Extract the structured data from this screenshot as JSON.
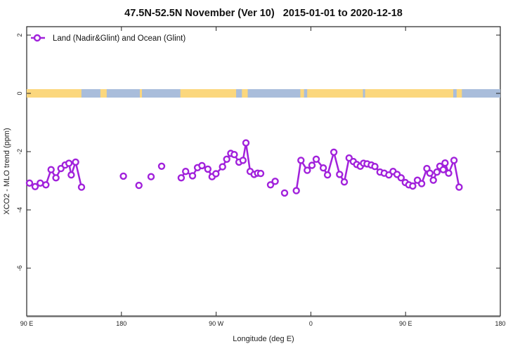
{
  "chart_data": {
    "type": "line",
    "title": "47.5N-52.5N November (Ver 10)   2015-01-01 to 2020-12-18",
    "legend": "Land (Nadir&Glint) and Ocean (Glint)",
    "xlabel": "Longitude (deg E)",
    "ylabel": "XCO2 - MLO trend (ppm)",
    "series_color": "#A121DB",
    "axis_color": "#222222",
    "xlim_deg": [
      90,
      540
    ],
    "ylim": [
      -7.64,
      2.29
    ],
    "grid": false,
    "legend_position": "top-left-inside",
    "x_ticks": [
      {
        "deg": 90,
        "label": "90 E"
      },
      {
        "deg": 180,
        "label": "180"
      },
      {
        "deg": 270,
        "label": "90 W"
      },
      {
        "deg": 360,
        "label": "0"
      },
      {
        "deg": 450,
        "label": "90 E"
      },
      {
        "deg": 540,
        "label": "180"
      }
    ],
    "y_ticks": [
      {
        "value": 2,
        "label": "2"
      },
      {
        "value": 0,
        "label": "0"
      },
      {
        "value": -2,
        "label": "-2"
      },
      {
        "value": -4,
        "label": "-4"
      },
      {
        "value": -6,
        "label": "-6"
      }
    ],
    "map_band": {
      "description": "world land/ocean strip for 47.5N-52.5N drawn along y=0",
      "land_color": "#FBD77D",
      "ocean_color": "#A9BDDB",
      "band_center_value": 0,
      "land_segments_deg": [
        [
          90,
          142
        ],
        [
          160,
          166
        ],
        [
          197.5,
          199.5
        ],
        [
          236,
          289
        ],
        [
          294.5,
          300
        ],
        [
          350,
          353.5
        ],
        [
          356.5,
          409.5
        ],
        [
          411.5,
          495.3
        ],
        [
          498.5,
          503.5
        ]
      ]
    },
    "series": [
      {
        "name": "Land (Nadir&Glint) and Ocean (Glint)",
        "marker": "open-circle",
        "segments": [
          [
            [
              92.7,
              -3.08
            ],
            [
              98.0,
              -3.2
            ],
            [
              102.9,
              -3.08
            ],
            [
              108.2,
              -3.14
            ],
            [
              113.2,
              -2.62
            ],
            [
              117.8,
              -2.9
            ],
            [
              122.5,
              -2.58
            ],
            [
              126.5,
              -2.46
            ],
            [
              130.1,
              -2.4
            ],
            [
              132.3,
              -2.8
            ],
            [
              136.5,
              -2.36
            ],
            [
              142.1,
              -3.22
            ]
          ],
          [
            [
              181.9,
              -2.84
            ]
          ],
          [
            [
              196.6,
              -3.16
            ]
          ],
          [
            [
              208.2,
              -2.86
            ]
          ],
          [
            [
              218.2,
              -2.5
            ]
          ],
          [
            [
              236.8,
              -2.9
            ],
            [
              241.0,
              -2.68
            ],
            [
              247.6,
              -2.83
            ],
            [
              252.3,
              -2.55
            ],
            [
              256.5,
              -2.48
            ],
            [
              262.1,
              -2.6
            ],
            [
              266.1,
              -2.86
            ],
            [
              269.8,
              -2.76
            ],
            [
              276.1,
              -2.52
            ],
            [
              280.1,
              -2.26
            ],
            [
              283.9,
              -2.06
            ],
            [
              287.2,
              -2.1
            ],
            [
              291.7,
              -2.36
            ],
            [
              295.5,
              -2.3
            ],
            [
              298.3,
              -1.7
            ],
            [
              302.3,
              -2.68
            ],
            [
              306.1,
              -2.78
            ],
            [
              309.4,
              -2.74
            ],
            [
              312.3,
              -2.75
            ]
          ],
          [
            [
              321.7,
              -3.14
            ],
            [
              326.1,
              -3.02
            ]
          ],
          [
            [
              335.0,
              -3.42
            ]
          ],
          [
            [
              346.2,
              -3.34
            ],
            [
              350.6,
              -2.3
            ],
            [
              356.6,
              -2.64
            ],
            [
              361.1,
              -2.47
            ],
            [
              365.1,
              -2.26
            ],
            [
              371.8,
              -2.56
            ],
            [
              375.8,
              -2.8
            ],
            [
              381.8,
              -2.02
            ],
            [
              387.3,
              -2.78
            ],
            [
              391.8,
              -3.04
            ],
            [
              396.3,
              -2.22
            ],
            [
              400.3,
              -2.34
            ],
            [
              403.6,
              -2.44
            ],
            [
              407.0,
              -2.5
            ],
            [
              410.1,
              -2.4
            ],
            [
              413.4,
              -2.42
            ],
            [
              417.4,
              -2.46
            ],
            [
              420.8,
              -2.51
            ],
            [
              425.7,
              -2.7
            ],
            [
              429.7,
              -2.74
            ],
            [
              434.1,
              -2.8
            ],
            [
              438.1,
              -2.68
            ],
            [
              441.9,
              -2.78
            ],
            [
              445.7,
              -2.9
            ],
            [
              449.7,
              -3.06
            ],
            [
              453.1,
              -3.14
            ],
            [
              456.8,
              -3.18
            ],
            [
              461.3,
              -2.98
            ],
            [
              465.3,
              -3.1
            ],
            [
              470.2,
              -2.58
            ],
            [
              473.1,
              -2.74
            ],
            [
              476.4,
              -2.98
            ],
            [
              479.8,
              -2.7
            ],
            [
              482.6,
              -2.5
            ],
            [
              485.8,
              -2.62
            ],
            [
              487.5,
              -2.39
            ],
            [
              490.9,
              -2.74
            ],
            [
              496.0,
              -2.3
            ],
            [
              500.9,
              -3.22
            ]
          ]
        ]
      }
    ]
  }
}
